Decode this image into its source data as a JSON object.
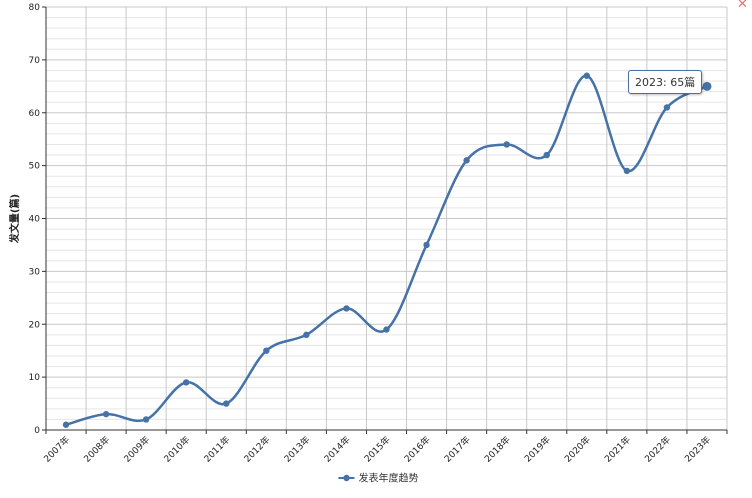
{
  "chart_data": {
    "type": "line",
    "categories": [
      "2007年",
      "2008年",
      "2009年",
      "2010年",
      "2011年",
      "2012年",
      "2013年",
      "2014年",
      "2015年",
      "2016年",
      "2017年",
      "2018年",
      "2019年",
      "2020年",
      "2021年",
      "2022年",
      "2023年"
    ],
    "series": [
      {
        "name": "发表年度趋势",
        "values": [
          1,
          3,
          2,
          9,
          5,
          15,
          18,
          23,
          19,
          35,
          51,
          54,
          52,
          67,
          49,
          61,
          65
        ]
      }
    ],
    "ylabel": "发文量(篇)",
    "ylim": [
      0,
      80
    ],
    "yticks": [
      0,
      10,
      20,
      30,
      40,
      50,
      60,
      70,
      80
    ],
    "grid": true,
    "legend": "bottom-center",
    "smooth": true,
    "colors": {
      "series": "#4572a7",
      "grid_major": "#c8c8c8",
      "grid_minor": "#e6e6e6"
    }
  },
  "tooltip": {
    "text": "2023: 65篇"
  },
  "close_icon": {
    "glyph": "✕",
    "name": "close-icon"
  }
}
